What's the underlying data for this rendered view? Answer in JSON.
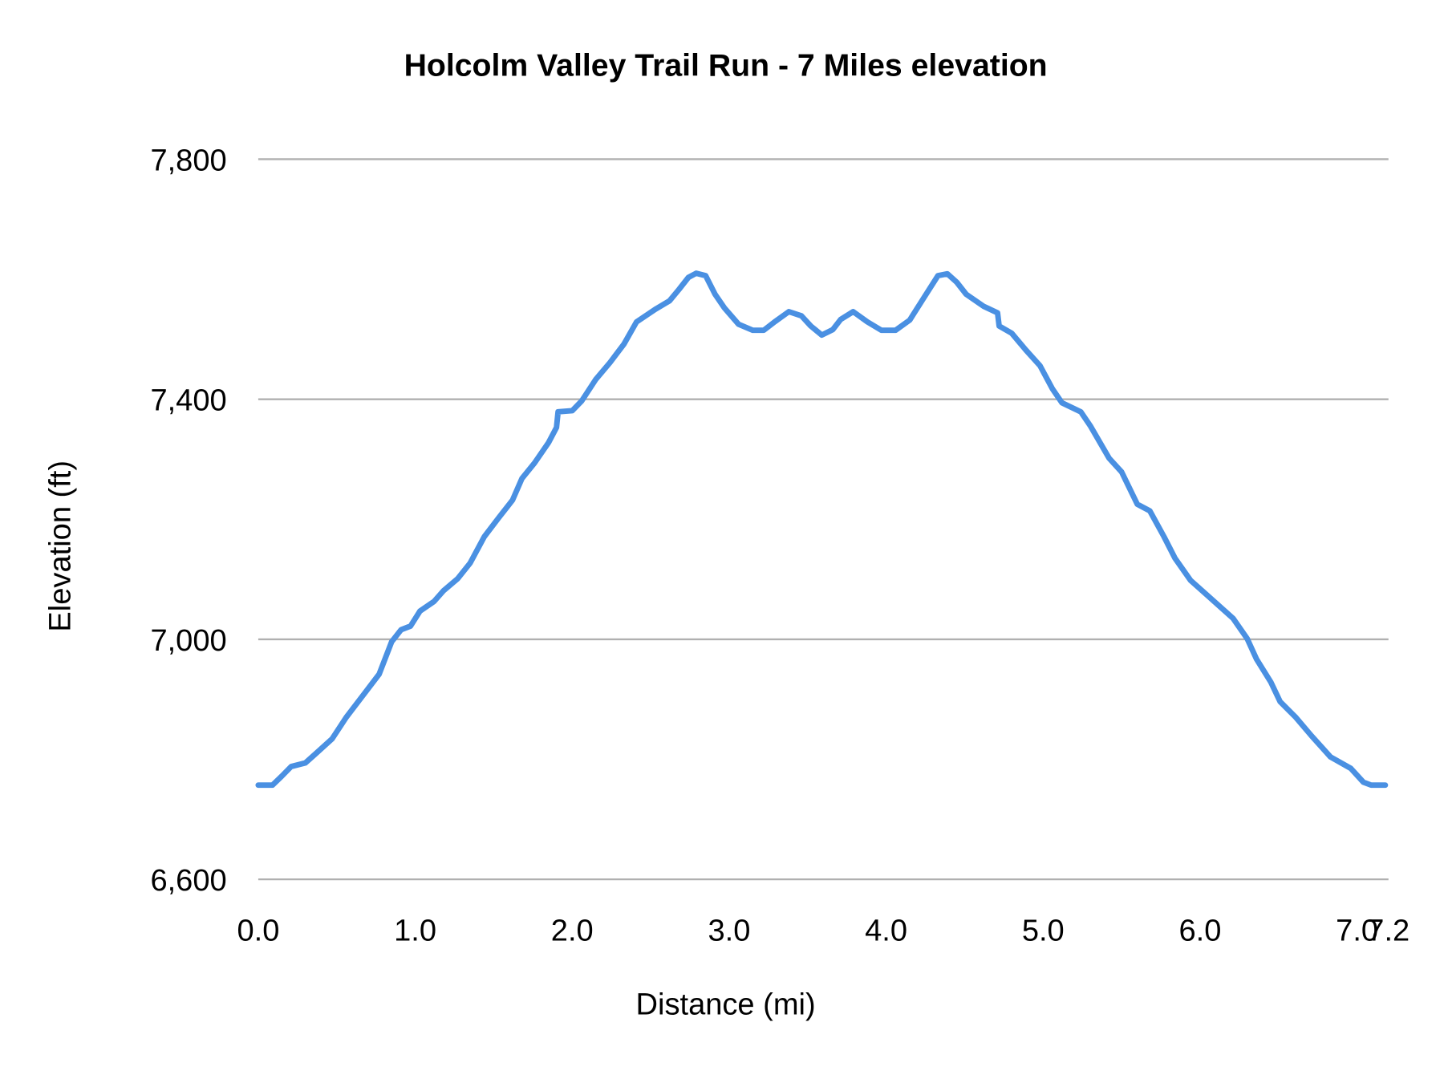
{
  "chart_data": {
    "type": "line",
    "title": "Holcolm Valley Trail Run - 7 Miles elevation",
    "xlabel": "Distance (mi)",
    "ylabel": "Elevation (ft)",
    "xlim": [
      0,
      7.2
    ],
    "ylim": [
      6600,
      7800
    ],
    "x_ticks": [
      0.0,
      1.0,
      2.0,
      3.0,
      4.0,
      5.0,
      6.0,
      7.0,
      7.2
    ],
    "x_tick_labels": [
      "0.0",
      "1.0",
      "2.0",
      "3.0",
      "4.0",
      "5.0",
      "6.0",
      "7.0",
      "7.2"
    ],
    "y_ticks": [
      6600,
      7000,
      7400,
      7800
    ],
    "y_tick_labels": [
      "6,600",
      "7,000",
      "7,400",
      "7,800"
    ],
    "grid": "horizontal",
    "legend": "none",
    "line_color": "#4a90e2",
    "series": [
      {
        "x": [
          0,
          0.09,
          0.15,
          0.21,
          0.3,
          0.36,
          0.47,
          0.56,
          0.68,
          0.77,
          0.85,
          0.91,
          0.97,
          1.03,
          1.12,
          1.18,
          1.27,
          1.35,
          1.44,
          1.53,
          1.62,
          1.68,
          1.76,
          1.85,
          1.9,
          1.91,
          2.0,
          2.06,
          2.15,
          2.24,
          2.33,
          2.41,
          2.53,
          2.62,
          2.68,
          2.74,
          2.79,
          2.85,
          2.91,
          2.97,
          3.06,
          3.15,
          3.22,
          3.29,
          3.38,
          3.46,
          3.52,
          3.59,
          3.66,
          3.71,
          3.79,
          3.88,
          3.97,
          4.06,
          4.15,
          4.24,
          4.33,
          4.39,
          4.45,
          4.51,
          4.62,
          4.71,
          4.72,
          4.8,
          4.89,
          4.98,
          5.06,
          5.12,
          5.24,
          5.3,
          5.42,
          5.5,
          5.6,
          5.68,
          5.77,
          5.84,
          5.94,
          6.06,
          6.21,
          6.3,
          6.36,
          6.45,
          6.51,
          6.61,
          6.71,
          6.83,
          6.96,
          7.04,
          7.09,
          7.18
        ],
        "y": [
          6757,
          6757,
          6772,
          6788,
          6794,
          6808,
          6834,
          6870,
          6911,
          6942,
          6996,
          7016,
          7022,
          7047,
          7063,
          7081,
          7101,
          7127,
          7171,
          7202,
          7232,
          7268,
          7294,
          7328,
          7353,
          7379,
          7381,
          7397,
          7433,
          7461,
          7492,
          7529,
          7550,
          7564,
          7583,
          7603,
          7610,
          7606,
          7575,
          7552,
          7525,
          7515,
          7515,
          7529,
          7546,
          7539,
          7522,
          7507,
          7516,
          7533,
          7546,
          7529,
          7515,
          7515,
          7532,
          7569,
          7606,
          7609,
          7595,
          7575,
          7555,
          7544,
          7522,
          7510,
          7482,
          7456,
          7417,
          7394,
          7379,
          7356,
          7302,
          7279,
          7225,
          7214,
          7171,
          7135,
          7098,
          7070,
          7035,
          7001,
          6967,
          6929,
          6896,
          6870,
          6839,
          6804,
          6785,
          6762,
          6757,
          6757
        ]
      }
    ]
  }
}
